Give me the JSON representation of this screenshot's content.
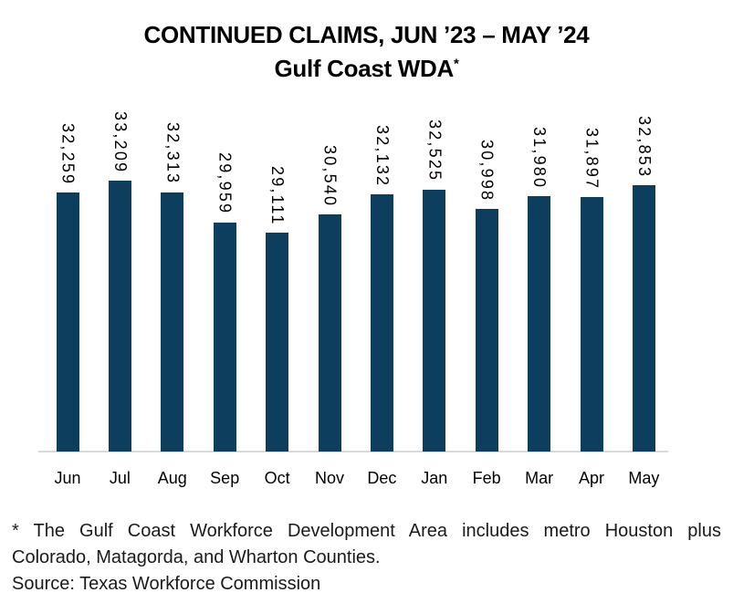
{
  "title": {
    "line1": "CONTINUED CLAIMS, JUN ’23 – MAY ’24",
    "line2": "Gulf Coast WDA",
    "line2_superscript": "*"
  },
  "chart_data": {
    "type": "bar",
    "title": "CONTINUED CLAIMS, JUN ’23 – MAY ’24 Gulf Coast WDA*",
    "categories": [
      "Jun",
      "Jul",
      "Aug",
      "Sep",
      "Oct",
      "Nov",
      "Dec",
      "Jan",
      "Feb",
      "Mar",
      "Apr",
      "May"
    ],
    "values": [
      32259,
      33209,
      32313,
      29959,
      29111,
      30540,
      32132,
      32525,
      30998,
      31980,
      31897,
      32853
    ],
    "data_labels": [
      "32,259",
      "33,209",
      "32,313",
      "29,959",
      "29,111",
      "30,540",
      "32,132",
      "32,525",
      "30,998",
      "31,980",
      "31,897",
      "32,853"
    ],
    "xlabel": "",
    "ylabel": "",
    "ylim": [
      12000,
      34000
    ],
    "value_axis_visible": false,
    "gridlines": false,
    "legend": "none",
    "data_label_rotation_deg": 90,
    "bar_color": "#0e3e5e",
    "axis_line_color": "#d9d9d9"
  },
  "footnote": {
    "line1": "* The Gulf Coast Workforce Development Area includes metro Houston plus",
    "line2": "Colorado, Matagorda, and Wharton Counties.",
    "source": "Source: Texas Workforce Commission"
  }
}
